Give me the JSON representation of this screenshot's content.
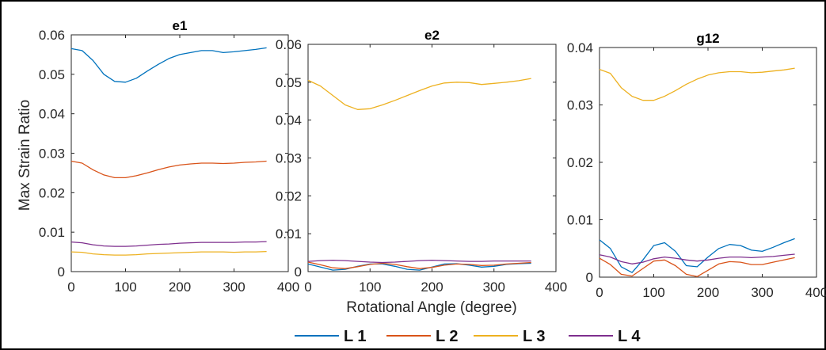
{
  "chart_data": [
    {
      "type": "line",
      "title": "e1",
      "ylabel": "Max Strain Ratio",
      "xlim": [
        0,
        400
      ],
      "ylim": [
        0,
        0.06
      ],
      "xticks": [
        "0",
        "100",
        "200",
        "300",
        "400"
      ],
      "yticks": [
        "0",
        "0.01",
        "0.02",
        "0.03",
        "0.04",
        "0.05",
        "0.06"
      ],
      "grid": false,
      "x": [
        0,
        20,
        40,
        60,
        80,
        100,
        120,
        140,
        160,
        180,
        200,
        220,
        240,
        260,
        280,
        300,
        320,
        340,
        360
      ],
      "series": [
        {
          "name": "L 1",
          "color": "#0072BD",
          "values": [
            0.0565,
            0.056,
            0.0535,
            0.05,
            0.0482,
            0.048,
            0.049,
            0.0508,
            0.0525,
            0.054,
            0.055,
            0.0555,
            0.056,
            0.056,
            0.0555,
            0.0557,
            0.056,
            0.0563,
            0.0567
          ]
        },
        {
          "name": "L 2",
          "color": "#D95319",
          "values": [
            0.028,
            0.0275,
            0.0258,
            0.0245,
            0.0238,
            0.0238,
            0.0243,
            0.025,
            0.0258,
            0.0265,
            0.027,
            0.0273,
            0.0275,
            0.0275,
            0.0274,
            0.0275,
            0.0277,
            0.0278,
            0.028
          ]
        },
        {
          "name": "L 3",
          "color": "#EDB120",
          "values": [
            0.005,
            0.0049,
            0.0045,
            0.0043,
            0.0042,
            0.0042,
            0.0043,
            0.0045,
            0.0046,
            0.0047,
            0.0048,
            0.0049,
            0.005,
            0.005,
            0.005,
            0.0049,
            0.005,
            0.005,
            0.0051
          ]
        },
        {
          "name": "L 4",
          "color": "#7E2F8E",
          "values": [
            0.0075,
            0.0073,
            0.0068,
            0.0065,
            0.0064,
            0.0064,
            0.0065,
            0.0067,
            0.0069,
            0.007,
            0.0072,
            0.0073,
            0.0074,
            0.0074,
            0.0074,
            0.0074,
            0.0075,
            0.0075,
            0.0076
          ]
        }
      ]
    },
    {
      "type": "line",
      "title": "e2",
      "xlabel": "Rotational Angle (degree)",
      "xlim": [
        0,
        400
      ],
      "ylim": [
        0,
        0.06
      ],
      "xticks": [
        "0",
        "100",
        "200",
        "300",
        "400"
      ],
      "yticks": [
        "0",
        "0.01",
        "0.02",
        "0.03",
        "0.04",
        "0.05",
        "0.06"
      ],
      "grid": false,
      "x": [
        0,
        20,
        40,
        60,
        80,
        100,
        120,
        140,
        160,
        180,
        200,
        220,
        240,
        260,
        280,
        300,
        320,
        340,
        360
      ],
      "series": [
        {
          "name": "L 1",
          "color": "#0072BD",
          "values": [
            0.002,
            0.0012,
            0.0004,
            0.0006,
            0.0014,
            0.002,
            0.002,
            0.0014,
            0.0006,
            0.0004,
            0.0012,
            0.002,
            0.0021,
            0.0017,
            0.0012,
            0.0014,
            0.0019,
            0.0021,
            0.0022
          ]
        },
        {
          "name": "L 2",
          "color": "#D95319",
          "values": [
            0.0025,
            0.0018,
            0.001,
            0.0008,
            0.0013,
            0.0019,
            0.0022,
            0.0019,
            0.0013,
            0.0008,
            0.0011,
            0.0017,
            0.002,
            0.0019,
            0.0016,
            0.0017,
            0.002,
            0.0022,
            0.0024
          ]
        },
        {
          "name": "L 3",
          "color": "#EDB120",
          "values": [
            0.0505,
            0.049,
            0.0465,
            0.044,
            0.0428,
            0.043,
            0.044,
            0.0452,
            0.0465,
            0.0478,
            0.049,
            0.0498,
            0.05,
            0.0499,
            0.0494,
            0.0497,
            0.05,
            0.0504,
            0.051
          ]
        },
        {
          "name": "L 4",
          "color": "#7E2F8E",
          "values": [
            0.0027,
            0.0029,
            0.003,
            0.0029,
            0.0027,
            0.0025,
            0.0024,
            0.0025,
            0.0027,
            0.0029,
            0.003,
            0.0029,
            0.0028,
            0.0027,
            0.0027,
            0.0028,
            0.0028,
            0.0028,
            0.0028
          ]
        }
      ]
    },
    {
      "type": "line",
      "title": "g12",
      "xlim": [
        0,
        400
      ],
      "ylim": [
        0,
        0.04
      ],
      "xticks": [
        "0",
        "100",
        "200",
        "300",
        "400"
      ],
      "yticks": [
        "0",
        "0.01",
        "0.02",
        "0.03",
        "0.04"
      ],
      "grid": false,
      "x": [
        0,
        20,
        40,
        60,
        80,
        100,
        120,
        140,
        160,
        180,
        200,
        220,
        240,
        260,
        280,
        300,
        320,
        340,
        360
      ],
      "series": [
        {
          "name": "L 1",
          "color": "#0072BD",
          "values": [
            0.0065,
            0.005,
            0.0018,
            0.0008,
            0.003,
            0.0055,
            0.006,
            0.0045,
            0.002,
            0.0018,
            0.0035,
            0.005,
            0.0057,
            0.0055,
            0.0047,
            0.0045,
            0.0052,
            0.006,
            0.0067
          ]
        },
        {
          "name": "L 2",
          "color": "#D95319",
          "values": [
            0.0033,
            0.0022,
            0.0005,
            0.0002,
            0.0015,
            0.0028,
            0.003,
            0.002,
            0.0005,
            0.0001,
            0.0012,
            0.0023,
            0.0027,
            0.0026,
            0.0022,
            0.0022,
            0.0026,
            0.003,
            0.0034
          ]
        },
        {
          "name": "L 3",
          "color": "#EDB120",
          "values": [
            0.0362,
            0.0355,
            0.033,
            0.0315,
            0.0308,
            0.0308,
            0.0315,
            0.0325,
            0.0336,
            0.0345,
            0.0352,
            0.0356,
            0.0358,
            0.0358,
            0.0356,
            0.0357,
            0.0359,
            0.0361,
            0.0364
          ]
        },
        {
          "name": "L 4",
          "color": "#7E2F8E",
          "values": [
            0.0039,
            0.0035,
            0.0027,
            0.0023,
            0.0026,
            0.0032,
            0.0035,
            0.0033,
            0.003,
            0.0028,
            0.003,
            0.0033,
            0.0035,
            0.0035,
            0.0034,
            0.0035,
            0.0036,
            0.0038,
            0.004
          ]
        }
      ]
    }
  ],
  "legend": {
    "placement": "bottom",
    "entries": [
      {
        "label": "L 1",
        "color": "#0072BD"
      },
      {
        "label": "L 2",
        "color": "#D95319"
      },
      {
        "label": "L 3",
        "color": "#EDB120"
      },
      {
        "label": "L 4",
        "color": "#7E2F8E"
      }
    ]
  }
}
